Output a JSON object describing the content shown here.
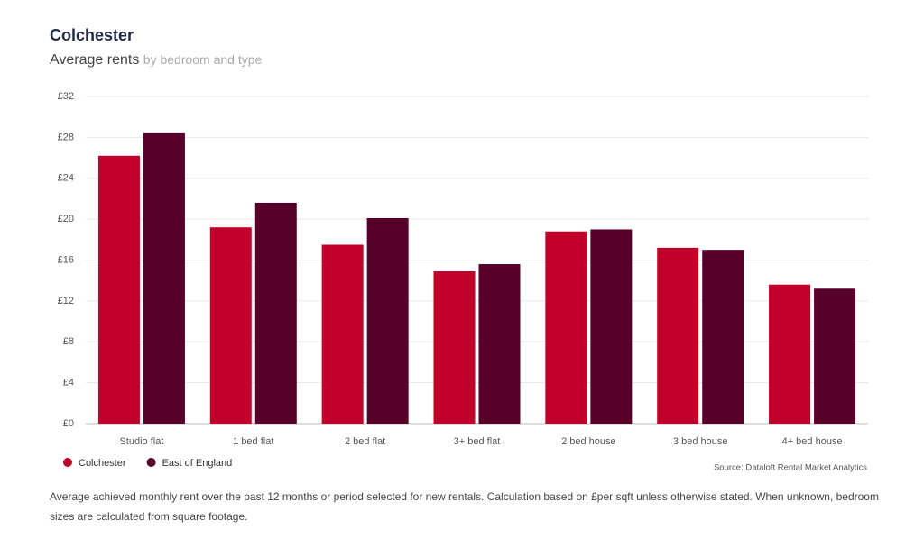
{
  "chart_data": {
    "type": "bar",
    "title": "Colchester",
    "subtitle": "Average rents",
    "subtitle_note": "by bedroom and type",
    "categories": [
      "Studio flat",
      "1 bed flat",
      "2 bed flat",
      "3+ bed flat",
      "2 bed house",
      "3 bed house",
      "4+ bed house"
    ],
    "series": [
      {
        "name": "Colchester",
        "color": "#c0002a",
        "values": [
          26.2,
          19.2,
          17.5,
          14.9,
          18.8,
          17.2,
          13.6
        ]
      },
      {
        "name": "East of England",
        "color": "#58002a",
        "values": [
          28.4,
          21.6,
          20.1,
          15.6,
          19.0,
          17.0,
          13.2
        ]
      }
    ],
    "ylim": [
      0,
      32
    ],
    "yticks": [
      {
        "value": 0,
        "label": "£0"
      },
      {
        "value": 4,
        "label": "£4"
      },
      {
        "value": 8,
        "label": "£8"
      },
      {
        "value": 12,
        "label": "£12"
      },
      {
        "value": 16,
        "label": "£16"
      },
      {
        "value": 20,
        "label": "£20"
      },
      {
        "value": 24,
        "label": "£24"
      },
      {
        "value": 28,
        "label": "£28"
      },
      {
        "value": 32,
        "label": "£32"
      }
    ],
    "grid": true,
    "legend": "bottom-left",
    "source": "Source: Dataloft Rental Market Analytics",
    "footnote": "Average achieved monthly rent over the past 12 months or period selected for new rentals. Calculation based on £per sqft unless otherwise stated. When unknown, bedroom sizes are calculated from square footage."
  }
}
